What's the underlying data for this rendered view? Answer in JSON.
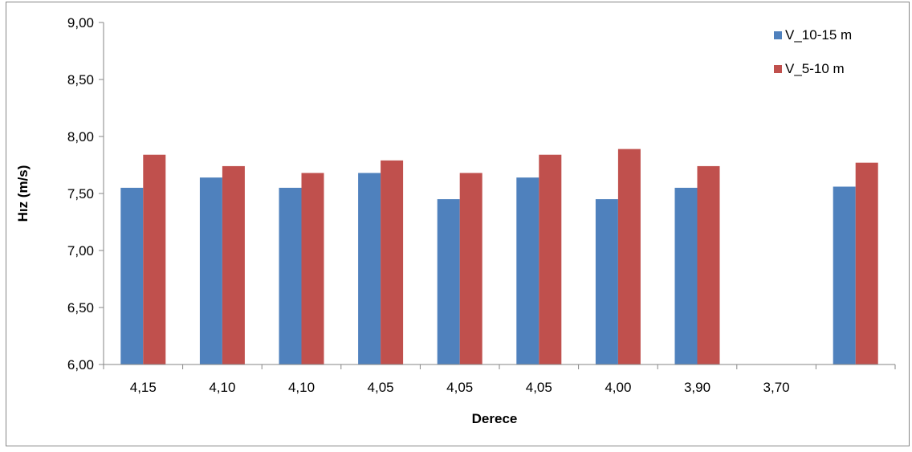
{
  "chart_data": {
    "type": "bar",
    "title": "",
    "xlabel": "Derece",
    "ylabel": "Hız (m/s)",
    "ylim": [
      6.0,
      9.0
    ],
    "y_ticks": [
      "6,00",
      "6,50",
      "7,00",
      "7,50",
      "8,00",
      "8,50",
      "9,00"
    ],
    "categories": [
      "4,15",
      "4,10",
      "4,10",
      "4,05",
      "4,05",
      "4,05",
      "4,00",
      "3,90",
      "3,70",
      ""
    ],
    "series": [
      {
        "name": "V_10-15 m",
        "color": "#4f81bd",
        "values": [
          7.55,
          7.64,
          7.55,
          7.68,
          7.45,
          7.64,
          7.45,
          7.55,
          null,
          7.56
        ]
      },
      {
        "name": "V_5-10 m",
        "color": "#c0504d",
        "values": [
          7.84,
          7.74,
          7.68,
          7.79,
          7.68,
          7.84,
          7.89,
          7.74,
          null,
          7.77
        ]
      }
    ],
    "grid": false,
    "legend_position": "top-right"
  }
}
